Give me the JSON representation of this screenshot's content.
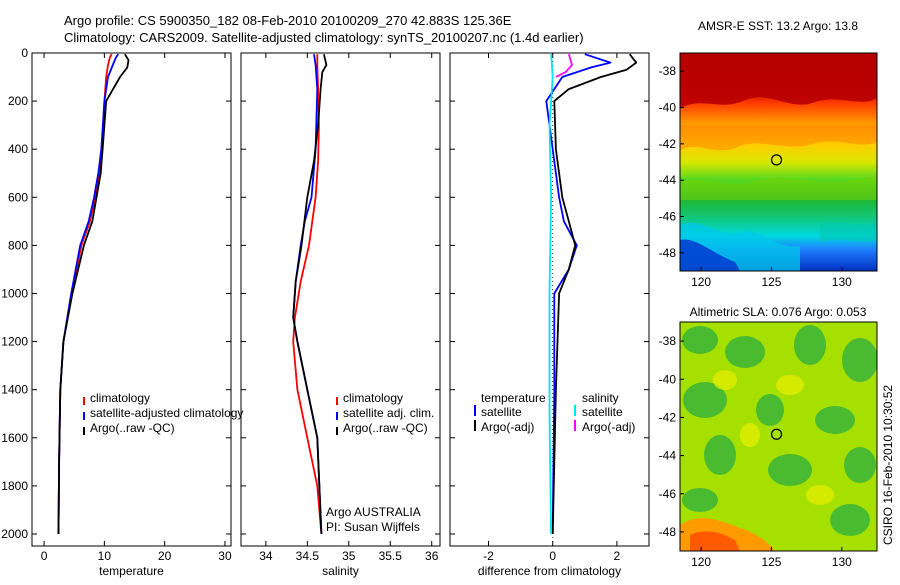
{
  "header": {
    "title_line1": "Argo profile: CS 5900350_182 08-Feb-2010 20100209_270 42.883S 125.36E",
    "title_line2": "Climatology: CARS2009. Satellite-adjusted climatology: synTS_20100207.nc (1.4d earlier)"
  },
  "side_label": "CSIRO 16-Feb-2010 10:30:52",
  "colors": {
    "climatology": "#ff0000",
    "satellite": "#0000ff",
    "argo": "#000000",
    "salinity_satellite": "#00e5ee",
    "salinity_argo": "#ff00ff"
  },
  "chart_data": [
    {
      "id": "temperature",
      "type": "line",
      "xlabel": "temperature",
      "ylabel": "",
      "xlim": [
        -2,
        31
      ],
      "ylim": [
        2050,
        0
      ],
      "xticks": [
        0,
        10,
        20,
        30
      ],
      "yticks": [
        0,
        200,
        400,
        600,
        800,
        1000,
        1200,
        1400,
        1600,
        1800,
        2000
      ],
      "legend": [
        "climatology",
        "satellite-adjusted climatology",
        "Argo(..raw -QC)"
      ],
      "series": [
        {
          "name": "climatology",
          "color": "#ff0000",
          "x": [
            11.2,
            10.9,
            10.6,
            10.3,
            10.0,
            9.6,
            9.2,
            8.5,
            7.6,
            6.2,
            4.6,
            3.2,
            2.7,
            2.5,
            2.4
          ],
          "y": [
            5,
            20,
            50,
            100,
            200,
            400,
            500,
            600,
            700,
            800,
            1000,
            1200,
            1400,
            1700,
            2000
          ]
        },
        {
          "name": "satellite-adjusted climatology",
          "color": "#0000ff",
          "x": [
            12.3,
            11.9,
            11.4,
            10.6,
            10.0,
            9.5,
            9.0,
            8.3,
            7.4,
            6.0,
            4.5,
            3.2,
            2.7,
            2.5,
            2.4
          ],
          "y": [
            5,
            20,
            50,
            100,
            200,
            400,
            500,
            600,
            700,
            800,
            1000,
            1200,
            1400,
            1700,
            2000
          ]
        },
        {
          "name": "Argo(..raw -QC)",
          "color": "#000000",
          "x": [
            13.4,
            14.0,
            13.8,
            12.6,
            10.3,
            9.7,
            9.4,
            8.7,
            8.0,
            6.6,
            4.7,
            3.2,
            2.7,
            2.5,
            2.4
          ],
          "y": [
            5,
            30,
            60,
            100,
            200,
            400,
            500,
            600,
            700,
            800,
            1000,
            1200,
            1400,
            1700,
            2000
          ]
        }
      ]
    },
    {
      "id": "salinity",
      "type": "line",
      "xlabel": "salinity",
      "ylabel": "",
      "xlim": [
        33.7,
        36.1
      ],
      "ylim": [
        2050,
        0
      ],
      "xticks": [
        34,
        34.5,
        35,
        35.5,
        36
      ],
      "yticks": [],
      "legend": [
        "climatology",
        "satellite adj. clim.",
        "Argo(..raw -QC)"
      ],
      "annotation": [
        "Argo AUSTRALIA",
        "PI: Susan Wijffels"
      ],
      "series": [
        {
          "name": "climatology",
          "color": "#ff0000",
          "x": [
            34.62,
            34.62,
            34.63,
            34.64,
            34.63,
            34.6,
            34.52,
            34.42,
            34.35,
            34.33,
            34.38,
            34.5,
            34.62,
            34.67
          ],
          "y": [
            5,
            50,
            150,
            300,
            450,
            600,
            800,
            950,
            1100,
            1200,
            1400,
            1600,
            1800,
            2000
          ]
        },
        {
          "name": "satellite adj. clim.",
          "color": "#0000ff",
          "x": [
            34.58,
            34.6,
            34.62,
            34.6,
            34.55,
            34.47,
            34.42,
            34.36,
            34.33,
            34.38,
            34.5,
            34.62,
            34.67
          ],
          "y": [
            5,
            50,
            150,
            400,
            600,
            700,
            800,
            950,
            1100,
            1200,
            1400,
            1600,
            2000
          ]
        },
        {
          "name": "Argo(..raw -QC)",
          "color": "#000000",
          "x": [
            34.7,
            34.73,
            34.68,
            34.66,
            34.63,
            34.58,
            34.5,
            34.43,
            34.36,
            34.33,
            34.38,
            34.5,
            34.62,
            34.67
          ],
          "y": [
            5,
            50,
            80,
            150,
            300,
            450,
            600,
            800,
            950,
            1100,
            1200,
            1400,
            1600,
            2000
          ]
        }
      ]
    },
    {
      "id": "difference",
      "type": "line",
      "xlabel": "difference from climatology",
      "ylabel": "",
      "xlim": [
        -3.2,
        3.0
      ],
      "ylim": [
        2050,
        0
      ],
      "xticks": [
        -2,
        0,
        2
      ],
      "yticks": [],
      "legend_temperature": {
        "title": "temperature",
        "entries": [
          "satellite",
          "Argo(-adj)"
        ]
      },
      "legend_salinity": {
        "title": "salinity",
        "entries": [
          "satellite",
          "Argo(-adj)"
        ]
      },
      "series": [
        {
          "name": "temperature satellite",
          "color": "#0000ff",
          "x": [
            1.0,
            1.8,
            1.2,
            0.3,
            -0.2,
            0.0,
            0.2,
            0.35,
            0.75,
            0.5,
            0.05,
            0.05,
            0.0
          ],
          "y": [
            5,
            40,
            60,
            100,
            200,
            400,
            600,
            700,
            800,
            900,
            1000,
            1400,
            2000
          ]
        },
        {
          "name": "temperature Argo(-adj)",
          "color": "#000000",
          "x": [
            2.4,
            2.6,
            2.3,
            1.5,
            0.5,
            0.05,
            0.1,
            0.3,
            0.5,
            0.7,
            0.5,
            0.2,
            0.1,
            0.0
          ],
          "y": [
            5,
            40,
            70,
            100,
            150,
            200,
            400,
            600,
            700,
            800,
            900,
            1000,
            1400,
            2000
          ]
        },
        {
          "name": "salinity satellite",
          "color": "#00e5ee",
          "x": [
            -0.05,
            0.0,
            -0.1,
            -0.05,
            -0.1,
            -0.1,
            -0.05
          ],
          "y": [
            5,
            100,
            300,
            600,
            1000,
            1500,
            2000
          ]
        },
        {
          "name": "salinity Argo(-adj)",
          "color": "#ff00ff",
          "x": [
            0.5,
            0.6,
            0.4,
            0.1
          ],
          "y": [
            5,
            50,
            80,
            100
          ]
        }
      ]
    },
    {
      "id": "sst_map",
      "type": "heatmap",
      "title": "AMSR-E SST: 13.2 Argo: 13.8",
      "xlim": [
        118.5,
        132.5
      ],
      "ylim": [
        -49,
        -37
      ],
      "xticks": [
        120,
        125,
        130
      ],
      "yticks": [
        -38,
        -40,
        -42,
        -44,
        -46,
        -48
      ],
      "marker": {
        "lon": 125.36,
        "lat": -42.883
      }
    },
    {
      "id": "sla_map",
      "type": "heatmap",
      "title": "Altimetric SLA: 0.076 Argo: 0.053",
      "xlim": [
        118.5,
        132.5
      ],
      "ylim": [
        -49,
        -37
      ],
      "xticks": [
        120,
        125,
        130
      ],
      "yticks": [
        -38,
        -40,
        -42,
        -44,
        -46,
        -48
      ],
      "marker": {
        "lon": 125.36,
        "lat": -42.883
      }
    }
  ]
}
